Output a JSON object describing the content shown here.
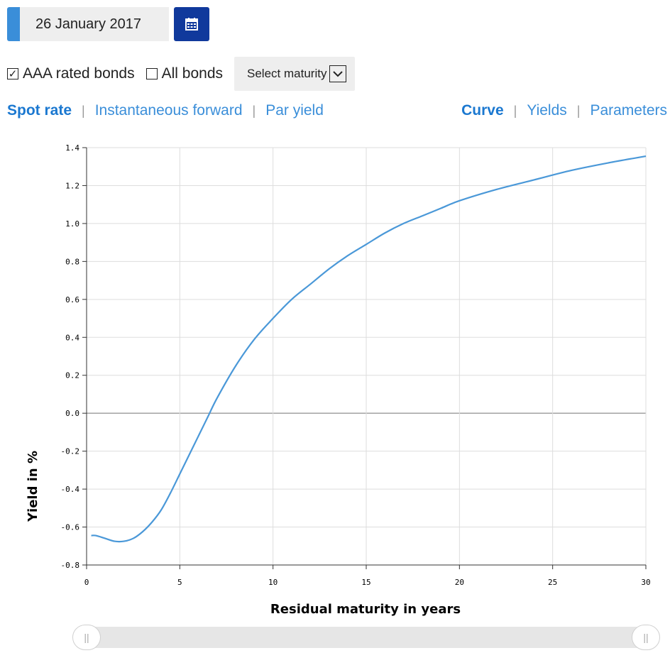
{
  "date": {
    "value": "26 January 2017"
  },
  "icons": {
    "calendar": "calendar-icon",
    "dropdown": "chevron-down-icon",
    "slider": "grip-icon"
  },
  "filters": {
    "aaa": {
      "label": "AAA rated bonds",
      "checked": true
    },
    "all": {
      "label": "All bonds",
      "checked": false
    },
    "maturity_label": "Select maturity"
  },
  "tabs_left": [
    "Spot rate",
    "Instantaneous forward",
    "Par yield"
  ],
  "tabs_right": [
    "Curve",
    "Yields",
    "Parameters"
  ],
  "slider": {
    "grip": "||"
  },
  "colors": {
    "accent": "#3a8ed9",
    "line": "#4a98d8",
    "calendar_button": "#10399c"
  },
  "chart_data": {
    "type": "line",
    "title": "",
    "xlabel": "Residual maturity in years",
    "ylabel": "Yield in %",
    "xlim": [
      0,
      30
    ],
    "ylim": [
      -0.8,
      1.4
    ],
    "xticks": [
      0,
      5,
      10,
      15,
      20,
      25,
      30
    ],
    "yticks": [
      "-0.8",
      "-0.6",
      "-0.4",
      "-0.2",
      "0.0",
      "0.2",
      "0.4",
      "0.6",
      "0.8",
      "1.0",
      "1.2",
      "1.4"
    ],
    "grid": true,
    "series": [
      {
        "x": [
          0.25,
          0.5,
          1,
          1.5,
          2,
          2.5,
          3,
          3.5,
          4,
          4.5,
          5,
          5.5,
          6,
          6.5,
          7,
          8,
          9,
          10,
          11,
          12,
          13,
          14,
          15,
          16,
          17,
          18,
          19,
          20,
          22,
          24,
          26,
          28,
          30
        ],
        "y": [
          -0.645,
          -0.645,
          -0.66,
          -0.675,
          -0.675,
          -0.66,
          -0.625,
          -0.575,
          -0.51,
          -0.42,
          -0.32,
          -0.22,
          -0.12,
          -0.02,
          0.08,
          0.25,
          0.39,
          0.5,
          0.6,
          0.68,
          0.76,
          0.83,
          0.89,
          0.95,
          1.0,
          1.04,
          1.08,
          1.12,
          1.18,
          1.23,
          1.28,
          1.32,
          1.355
        ]
      }
    ]
  }
}
